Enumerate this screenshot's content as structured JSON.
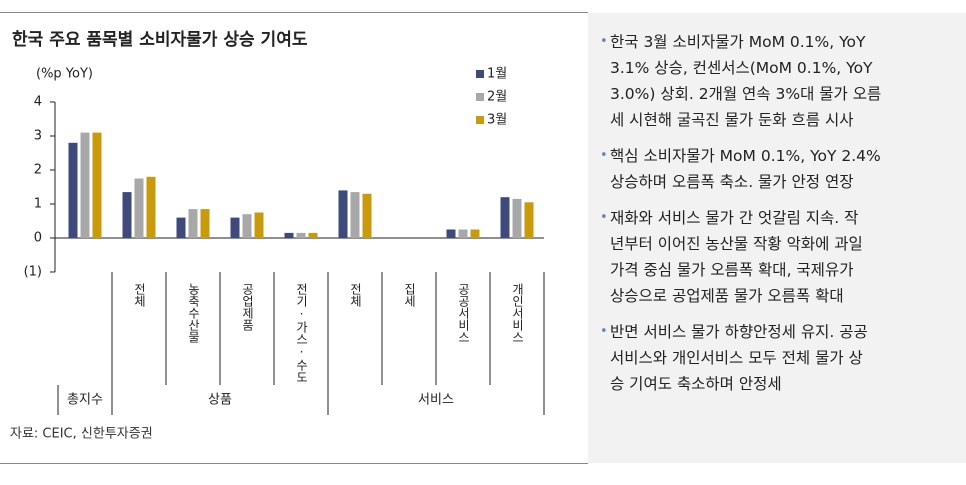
{
  "chart_data": {
    "type": "bar",
    "title": "한국 주요 품목별 소비자물가 상승 기여도",
    "y_label": "(%p YoY)",
    "categories": [
      "총지수",
      "전체",
      "농축수산물",
      "공업제품",
      "전기·가스·수도",
      "전체",
      "집세",
      "공공서비스",
      "개인서비스"
    ],
    "groups": [
      "총지수",
      "상품",
      "서비스"
    ],
    "series": [
      {
        "name": "1월",
        "color": "#3f4a7c",
        "values": [
          2.8,
          1.35,
          0.6,
          0.6,
          0.15,
          1.4,
          0,
          0.25,
          1.2
        ]
      },
      {
        "name": "2월",
        "color": "#a8a8a8",
        "values": [
          3.1,
          1.75,
          0.85,
          0.7,
          0.15,
          1.35,
          0,
          0.25,
          1.15
        ]
      },
      {
        "name": "3월",
        "color": "#c99a0c",
        "values": [
          3.1,
          1.8,
          0.85,
          0.75,
          0.15,
          1.3,
          0,
          0.25,
          1.05
        ]
      }
    ],
    "ylim": [
      -1,
      4
    ],
    "yticks": [
      {
        "value": -1,
        "label": "(1)"
      },
      0,
      1,
      2,
      3,
      4
    ],
    "grid": false,
    "source": "자료: CEIC, 신한투자증권"
  },
  "bullets": [
    [
      "한국 3월 소비자물가 MoM 0.1%, YoY",
      "3.1% 상승, 컨센서스(MoM 0.1%, YoY",
      "3.0%) 상회. 2개월 연속 3%대 물가 오름",
      "세 시현해 굴곡진 물가 둔화 흐름 시사"
    ],
    [
      "핵심 소비자물가 MoM 0.1%, YoY 2.4%",
      "상승하며 오름폭 축소. 물가 안정 연장"
    ],
    [
      "재화와 서비스 물가 간 엇갈림 지속. 작",
      "년부터 이어진 농산물 작황 악화에 과일",
      "가격 중심 물가 오름폭 확대, 국제유가",
      "상승으로 공업제품 물가 오름폭 확대"
    ],
    [
      "반면 서비스 물가 하향안정세 유지. 공공",
      "서비스와 개인서비스 모두 전체 물가 상",
      "승 기여도 축소하며 안정세"
    ]
  ]
}
